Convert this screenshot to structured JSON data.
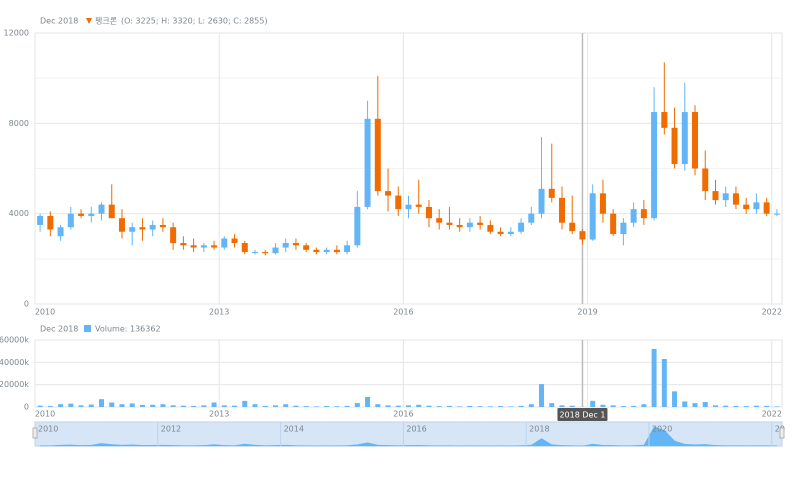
{
  "chart_data": {
    "type": "candlestick",
    "legend": {
      "date": "Dec 2018",
      "name": "펭크론",
      "text": "(O: 3225; H: 3320; L: 2630; C: 2855)"
    },
    "volume_legend": {
      "date": "Dec 2018",
      "text": "Volume: 136362"
    },
    "tooltip": "2018 Dec 1",
    "crosshair_x": "2018-12",
    "up_color": "#64b5f6",
    "down_color": "#ef6c00",
    "volume_color": "#64b5f6",
    "grid": true,
    "x": [
      "2010-02",
      "2010-04",
      "2010-06",
      "2010-08",
      "2010-10",
      "2010-12",
      "2011-02",
      "2011-04",
      "2011-06",
      "2011-08",
      "2011-10",
      "2011-12",
      "2012-02",
      "2012-04",
      "2012-06",
      "2012-08",
      "2012-10",
      "2012-12",
      "2013-02",
      "2013-04",
      "2013-06",
      "2013-08",
      "2013-10",
      "2013-12",
      "2014-02",
      "2014-04",
      "2014-06",
      "2014-08",
      "2014-10",
      "2014-12",
      "2015-02",
      "2015-04",
      "2015-06",
      "2015-08",
      "2015-10",
      "2015-12",
      "2016-02",
      "2016-04",
      "2016-06",
      "2016-08",
      "2016-10",
      "2016-12",
      "2017-02",
      "2017-04",
      "2017-06",
      "2017-08",
      "2017-10",
      "2017-12",
      "2018-02",
      "2018-04",
      "2018-06",
      "2018-08",
      "2018-10",
      "2018-12",
      "2019-02",
      "2019-04",
      "2019-06",
      "2019-08",
      "2019-10",
      "2019-12",
      "2020-02",
      "2020-04",
      "2020-06",
      "2020-08",
      "2020-10",
      "2020-12",
      "2021-02",
      "2021-04",
      "2021-06",
      "2021-08",
      "2021-10",
      "2021-12",
      "2022-02"
    ],
    "open": [
      3500,
      3900,
      3000,
      3400,
      4000,
      3900,
      4000,
      4400,
      3800,
      3200,
      3400,
      3300,
      3500,
      3400,
      2700,
      2600,
      2500,
      2600,
      2500,
      2900,
      2700,
      2300,
      2300,
      2250,
      2500,
      2700,
      2600,
      2400,
      2300,
      2400,
      2300,
      2600,
      4300,
      8200,
      5000,
      4800,
      4200,
      4400,
      4300,
      3800,
      3600,
      3500,
      3400,
      3600,
      3500,
      3200,
      3100,
      3200,
      3600,
      4000,
      5100,
      4700,
      3600,
      3225,
      2855,
      4900,
      4000,
      3100,
      3600,
      4200,
      3800,
      8500,
      7800,
      6200,
      8500,
      6000,
      5000,
      4600,
      4900,
      4400,
      4200,
      4500,
      4000
    ],
    "high": [
      4000,
      4100,
      3500,
      4300,
      4200,
      4300,
      4500,
      5300,
      4200,
      3600,
      3800,
      3700,
      3800,
      3600,
      3000,
      2900,
      2700,
      2800,
      3000,
      3100,
      2800,
      2400,
      2400,
      2700,
      2900,
      2900,
      2700,
      2500,
      2500,
      2600,
      2800,
      5000,
      9000,
      10100,
      6000,
      5200,
      4800,
      5500,
      4600,
      4200,
      4300,
      3800,
      3800,
      3900,
      3700,
      3400,
      3400,
      3800,
      4300,
      7400,
      7100,
      5200,
      4800,
      3320,
      5300,
      5500,
      4200,
      3800,
      4500,
      4600,
      9600,
      10700,
      8700,
      9800,
      8800,
      6800,
      5500,
      5200,
      5200,
      4700,
      4900,
      4700,
      4200
    ],
    "low": [
      3200,
      3000,
      2800,
      3300,
      3800,
      3600,
      3700,
      3800,
      2900,
      2600,
      2800,
      3000,
      3200,
      2400,
      2400,
      2300,
      2300,
      2400,
      2400,
      2500,
      2200,
      2200,
      2150,
      2200,
      2300,
      2400,
      2300,
      2200,
      2200,
      2200,
      2200,
      2500,
      4200,
      4800,
      4100,
      3900,
      3800,
      4000,
      3400,
      3300,
      3300,
      3200,
      3200,
      3300,
      3100,
      3000,
      3000,
      3100,
      3500,
      3800,
      4500,
      3300,
      3100,
      2630,
      2800,
      3600,
      3000,
      2600,
      3400,
      3500,
      3700,
      7500,
      6000,
      5900,
      5700,
      4600,
      4400,
      4300,
      4200,
      4000,
      4000,
      3900,
      3900
    ],
    "close": [
      3900,
      3300,
      3400,
      4000,
      3900,
      4000,
      4400,
      3800,
      3200,
      3400,
      3300,
      3500,
      3400,
      2700,
      2600,
      2500,
      2600,
      2500,
      2900,
      2700,
      2300,
      2300,
      2250,
      2500,
      2700,
      2600,
      2400,
      2300,
      2400,
      2300,
      2600,
      4300,
      8200,
      5000,
      4800,
      4200,
      4400,
      4300,
      3800,
      3600,
      3500,
      3400,
      3600,
      3500,
      3200,
      3100,
      3200,
      3600,
      4000,
      5100,
      4700,
      3600,
      3225,
      2855,
      4900,
      4000,
      3100,
      3600,
      4200,
      3800,
      8500,
      7800,
      6200,
      8500,
      6000,
      5000,
      4600,
      4900,
      4400,
      4200,
      4500,
      4000,
      4000
    ],
    "volume": [
      1200000,
      800000,
      2500000,
      3000000,
      1500000,
      2200000,
      7000000,
      4000000,
      2500000,
      3200000,
      1800000,
      2000000,
      2500000,
      1500000,
      1200000,
      1000000,
      1500000,
      4000000,
      1500000,
      1200000,
      5500000,
      2500000,
      1000000,
      1500000,
      2500000,
      1200000,
      800000,
      600000,
      900000,
      700000,
      1000000,
      3500000,
      9000000,
      2500000,
      1500000,
      1200000,
      1500000,
      2000000,
      1200000,
      800000,
      1000000,
      600000,
      900000,
      700000,
      600000,
      800000,
      500000,
      1000000,
      2500000,
      20500000,
      3500000,
      1500000,
      1200000,
      136362,
      5500000,
      2000000,
      1500000,
      800000,
      1000000,
      2500000,
      52000000,
      43000000,
      14000000,
      5000000,
      3500000,
      4500000,
      1500000,
      1200000,
      1000000,
      800000,
      1200000,
      1000000,
      500000
    ],
    "xlim": [
      "2010-01",
      "2022-03"
    ],
    "xticks": [
      {
        "value": "2010-01",
        "label": "2010"
      },
      {
        "value": "2013-01",
        "label": "2013"
      },
      {
        "value": "2016-01",
        "label": "2016"
      },
      {
        "value": "2019-01",
        "label": "2019"
      },
      {
        "value": "2022-01",
        "label": "2022"
      }
    ],
    "ylim": [
      0,
      12000
    ],
    "yticks": [
      0,
      4000,
      8000,
      12000
    ],
    "volume_ylim": [
      0,
      60000000
    ],
    "volume_yticks": [
      0,
      {
        "value": 20000000,
        "label": "20000k"
      },
      {
        "value": 40000000,
        "label": "40000k"
      },
      {
        "value": 60000000,
        "label": "60000k"
      }
    ],
    "navigator_ticks": [
      {
        "value": "2010-01",
        "label": "2010"
      },
      {
        "value": "2012-01",
        "label": "2012"
      },
      {
        "value": "2014-01",
        "label": "2014"
      },
      {
        "value": "2016-01",
        "label": "2016"
      },
      {
        "value": "2018-01",
        "label": "2018"
      },
      {
        "value": "2020-01",
        "label": "2020"
      },
      {
        "value": "2022-01",
        "label": "20"
      }
    ]
  }
}
